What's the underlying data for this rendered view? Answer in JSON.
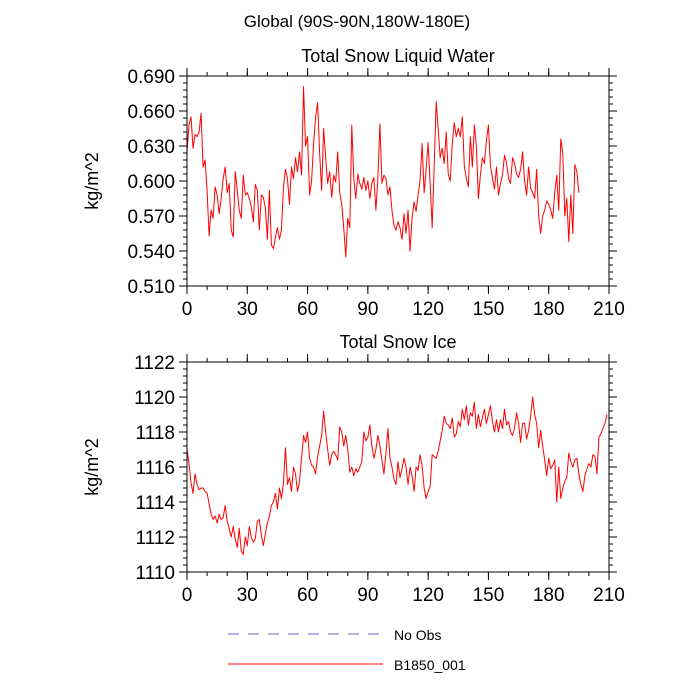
{
  "header": {
    "region_title": "Global (90S-90N,180W-180E)"
  },
  "chart_data": [
    {
      "type": "line",
      "title": "Total Snow Liquid Water",
      "xlabel": "",
      "ylabel": "kg/m^2",
      "xlim": [
        0,
        210
      ],
      "ylim": [
        0.51,
        0.69
      ],
      "xticks": [
        0,
        30,
        60,
        90,
        120,
        150,
        180,
        210
      ],
      "yticks": [
        0.51,
        0.54,
        0.57,
        0.6,
        0.63,
        0.66,
        0.69
      ],
      "xtick_labels": [
        "0",
        "30",
        "60",
        "90",
        "120",
        "150",
        "180",
        "210"
      ],
      "ytick_labels": [
        "0.510",
        "0.540",
        "0.570",
        "0.600",
        "0.630",
        "0.660",
        "0.690"
      ],
      "series": [
        {
          "name": "B1850_001",
          "color": "#ff0000",
          "x_start": 0,
          "x_step": 1,
          "values": [
            0.625,
            0.648,
            0.655,
            0.628,
            0.64,
            0.638,
            0.642,
            0.658,
            0.612,
            0.618,
            0.592,
            0.553,
            0.575,
            0.568,
            0.595,
            0.588,
            0.572,
            0.585,
            0.602,
            0.612,
            0.59,
            0.598,
            0.558,
            0.552,
            0.608,
            0.592,
            0.575,
            0.568,
            0.605,
            0.588,
            0.59,
            0.585,
            0.578,
            0.565,
            0.597,
            0.592,
            0.558,
            0.588,
            0.586,
            0.577,
            0.55,
            0.592,
            0.545,
            0.542,
            0.552,
            0.56,
            0.55,
            0.558,
            0.595,
            0.61,
            0.602,
            0.58,
            0.612,
            0.602,
            0.62,
            0.608,
            0.625,
            0.605,
            0.681,
            0.63,
            0.638,
            0.588,
            0.6,
            0.632,
            0.655,
            0.667,
            0.624,
            0.592,
            0.645,
            0.62,
            0.598,
            0.608,
            0.586,
            0.605,
            0.599,
            0.625,
            0.59,
            0.58,
            0.56,
            0.535,
            0.568,
            0.56,
            0.648,
            0.602,
            0.585,
            0.606,
            0.598,
            0.593,
            0.603,
            0.592,
            0.6,
            0.585,
            0.598,
            0.603,
            0.575,
            0.603,
            0.649,
            0.598,
            0.605,
            0.602,
            0.588,
            0.595,
            0.575,
            0.562,
            0.558,
            0.565,
            0.56,
            0.55,
            0.572,
            0.555,
            0.575,
            0.54,
            0.568,
            0.582,
            0.574,
            0.588,
            0.601,
            0.632,
            0.59,
            0.61,
            0.633,
            0.598,
            0.56,
            0.612,
            0.668,
            0.645,
            0.62,
            0.628,
            0.615,
            0.642,
            0.606,
            0.6,
            0.632,
            0.65,
            0.638,
            0.645,
            0.638,
            0.655,
            0.613,
            0.602,
            0.595,
            0.638,
            0.612,
            0.648,
            0.63,
            0.585,
            0.605,
            0.62,
            0.615,
            0.635,
            0.648,
            0.613,
            0.603,
            0.593,
            0.612,
            0.588,
            0.598,
            0.605,
            0.622,
            0.616,
            0.602,
            0.598,
            0.62,
            0.615,
            0.606,
            0.603,
            0.61,
            0.625,
            0.6,
            0.588,
            0.612,
            0.594,
            0.59,
            0.585,
            0.61,
            0.57,
            0.555,
            0.57,
            0.575,
            0.583,
            0.58,
            0.575,
            0.568,
            0.59,
            0.605,
            0.575,
            0.636,
            0.624,
            0.57,
            0.585,
            0.548,
            0.588,
            0.555,
            0.614,
            0.608,
            0.59
          ]
        }
      ]
    },
    {
      "type": "line",
      "title": "Total Snow Ice",
      "xlabel": "",
      "ylabel": "kg/m^2",
      "xlim": [
        0,
        210
      ],
      "ylim": [
        1110,
        1122
      ],
      "xticks": [
        0,
        30,
        60,
        90,
        120,
        150,
        180,
        210
      ],
      "yticks": [
        1110,
        1112,
        1114,
        1116,
        1118,
        1120,
        1122
      ],
      "xtick_labels": [
        "0",
        "30",
        "60",
        "90",
        "120",
        "150",
        "180",
        "210"
      ],
      "ytick_labels": [
        "1110",
        "1112",
        "1114",
        "1116",
        "1118",
        "1120",
        "1122"
      ],
      "series": [
        {
          "name": "B1850_001",
          "color": "#ff0000",
          "x_start": 0,
          "x_step": 1,
          "values": [
            1117.0,
            1116.2,
            1115.1,
            1114.5,
            1115.6,
            1115.0,
            1114.7,
            1114.8,
            1114.8,
            1114.6,
            1114.5,
            1113.9,
            1113.3,
            1113.0,
            1113.2,
            1112.8,
            1113.3,
            1113.0,
            1113.1,
            1113.8,
            1112.9,
            1112.5,
            1112.0,
            1112.6,
            1111.9,
            1111.4,
            1112.5,
            1111.2,
            1111.0,
            1112.0,
            1111.5,
            1112.6,
            1112.0,
            1111.7,
            1111.9,
            1112.9,
            1113.0,
            1112.1,
            1111.5,
            1112.2,
            1112.8,
            1113.2,
            1113.8,
            1114.0,
            1114.5,
            1113.6,
            1114.8,
            1114.2,
            1115.1,
            1117.1,
            1115.0,
            1115.4,
            1114.6,
            1116.0,
            1115.6,
            1114.6,
            1115.2,
            1116.5,
            1117.8,
            1117.4,
            1118.0,
            1116.5,
            1116.1,
            1116.0,
            1115.6,
            1116.6,
            1117.2,
            1117.8,
            1119.2,
            1118.0,
            1117.0,
            1116.1,
            1116.7,
            1116.9,
            1116.7,
            1116.4,
            1118.3,
            1118.0,
            1117.2,
            1117.8,
            1117.0,
            1115.7,
            1116.0,
            1115.5,
            1115.9,
            1115.7,
            1116.0,
            1116.3,
            1118.0,
            1117.5,
            1117.7,
            1118.4,
            1117.2,
            1116.5,
            1117.0,
            1117.8,
            1117.2,
            1116.4,
            1115.6,
            1116.8,
            1118.2,
            1116.5,
            1116.0,
            1115.3,
            1115.0,
            1116.3,
            1115.4,
            1115.9,
            1116.5,
            1116.0,
            1115.0,
            1116.0,
            1115.5,
            1114.6,
            1116.0,
            1115.8,
            1116.7,
            1116.1,
            1114.8,
            1114.2,
            1114.6,
            1114.9,
            1116.7,
            1116.6,
            1116.5,
            1116.9,
            1117.5,
            1118.1,
            1118.9,
            1118.5,
            1118.4,
            1118.2,
            1118.8,
            1117.7,
            1117.9,
            1118.6,
            1118.3,
            1119.3,
            1118.7,
            1119.5,
            1118.4,
            1119.1,
            1118.9,
            1119.7,
            1118.2,
            1119.0,
            1118.3,
            1118.8,
            1119.3,
            1118.5,
            1119.0,
            1119.5,
            1118.6,
            1118.0,
            1118.7,
            1118.0,
            1118.7,
            1118.2,
            1119.3,
            1118.4,
            1118.6,
            1118.0,
            1117.8,
            1118.2,
            1119.1,
            1118.5,
            1117.4,
            1118.5,
            1118.5,
            1117.6,
            1118.1,
            1118.9,
            1120.0,
            1119.0,
            1118.5,
            1117.1,
            1118.1,
            1117.2,
            1116.4,
            1115.5,
            1116.5,
            1115.9,
            1116.1,
            1116.4,
            1114.0,
            1116.0,
            1114.2,
            1114.8,
            1115.2,
            1115.4,
            1116.8,
            1116.3,
            1116.0,
            1116.4,
            1116.5,
            1115.6,
            1115.0,
            1114.6,
            1115.5,
            1115.9,
            1116.2,
            1116.0,
            1116.7,
            1116.6,
            1115.6,
            1117.7,
            1117.9,
            1118.2,
            1118.5,
            1119.0
          ]
        }
      ]
    }
  ],
  "legend": [
    {
      "label": "No Obs",
      "color": "#6b6bd8",
      "style": "dashed"
    },
    {
      "label": "B1850_001",
      "color": "#ff0000",
      "style": "solid"
    }
  ]
}
